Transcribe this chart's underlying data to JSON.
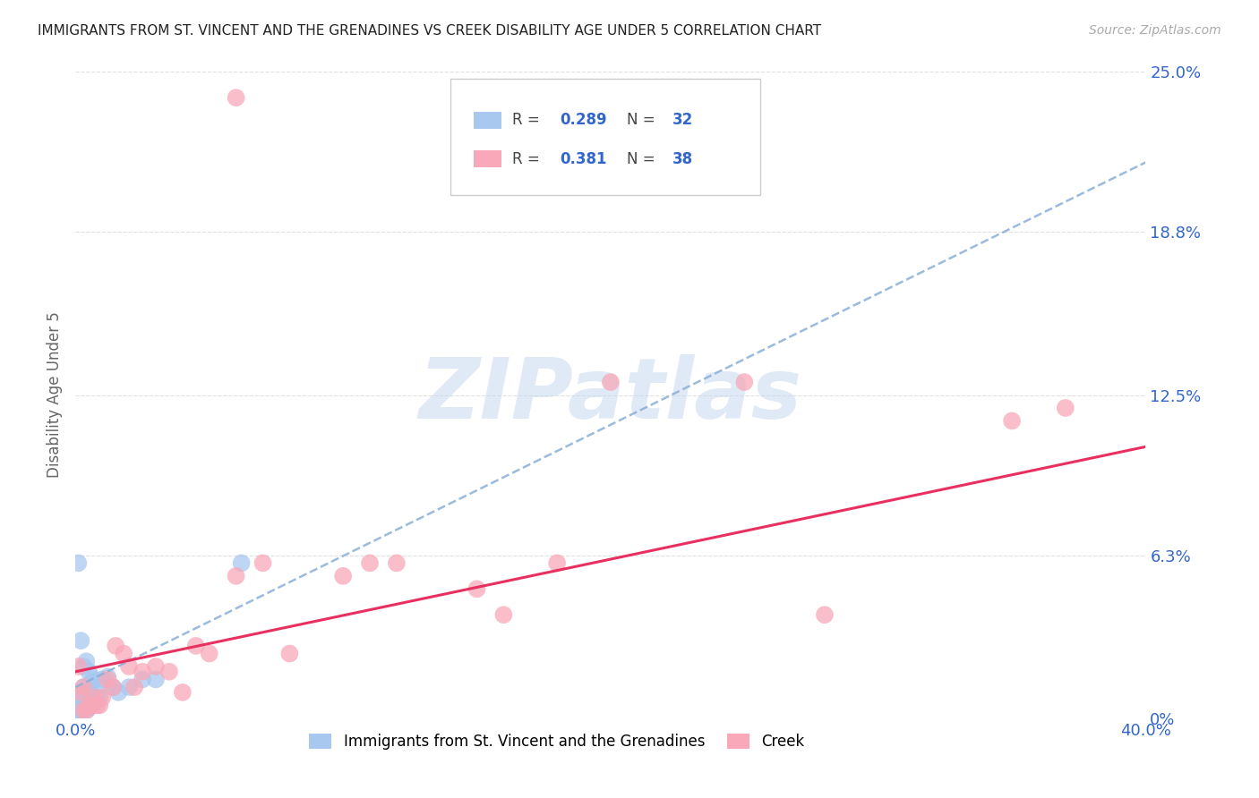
{
  "title": "IMMIGRANTS FROM ST. VINCENT AND THE GRENADINES VS CREEK DISABILITY AGE UNDER 5 CORRELATION CHART",
  "source": "Source: ZipAtlas.com",
  "ylabel": "Disability Age Under 5",
  "xlim": [
    0.0,
    0.4
  ],
  "ylim": [
    0.0,
    0.25
  ],
  "xticks": [
    0.0,
    0.1,
    0.2,
    0.3,
    0.4
  ],
  "xtick_labels": [
    "0.0%",
    "",
    "",
    "",
    "40.0%"
  ],
  "yticks": [
    0.0,
    0.063,
    0.125,
    0.188,
    0.25
  ],
  "ytick_labels": [
    "0%",
    "6.3%",
    "12.5%",
    "18.8%",
    "25.0%"
  ],
  "blue_color": "#a8c8f0",
  "pink_color": "#f8a8b8",
  "blue_line_color": "#3060c0",
  "pink_line_color": "#e83060",
  "axis_label_color": "#3366cc",
  "watermark_color": "#c8d8f0",
  "watermark_text": "ZIPatlas",
  "blue_x": [
    0.001,
    0.001,
    0.001,
    0.001,
    0.001,
    0.002,
    0.002,
    0.002,
    0.003,
    0.003,
    0.003,
    0.004,
    0.004,
    0.004,
    0.005,
    0.005,
    0.005,
    0.006,
    0.006,
    0.007,
    0.007,
    0.008,
    0.009,
    0.01,
    0.012,
    0.014,
    0.016,
    0.02,
    0.025,
    0.03,
    0.062,
    0.001
  ],
  "blue_y": [
    0.002,
    0.003,
    0.004,
    0.005,
    0.008,
    0.003,
    0.01,
    0.03,
    0.004,
    0.012,
    0.02,
    0.003,
    0.01,
    0.022,
    0.004,
    0.012,
    0.018,
    0.005,
    0.014,
    0.006,
    0.015,
    0.01,
    0.008,
    0.015,
    0.016,
    0.012,
    0.01,
    0.012,
    0.015,
    0.015,
    0.06,
    0.06
  ],
  "pink_x": [
    0.001,
    0.002,
    0.003,
    0.003,
    0.004,
    0.005,
    0.006,
    0.007,
    0.008,
    0.009,
    0.01,
    0.012,
    0.014,
    0.015,
    0.018,
    0.02,
    0.022,
    0.025,
    0.03,
    0.035,
    0.04,
    0.045,
    0.05,
    0.06,
    0.07,
    0.08,
    0.1,
    0.11,
    0.12,
    0.15,
    0.16,
    0.18,
    0.2,
    0.25,
    0.28,
    0.35,
    0.37,
    0.06
  ],
  "pink_y": [
    0.02,
    0.01,
    0.003,
    0.012,
    0.003,
    0.005,
    0.005,
    0.008,
    0.005,
    0.005,
    0.008,
    0.015,
    0.012,
    0.028,
    0.025,
    0.02,
    0.012,
    0.018,
    0.02,
    0.018,
    0.01,
    0.028,
    0.025,
    0.055,
    0.06,
    0.025,
    0.055,
    0.06,
    0.06,
    0.05,
    0.04,
    0.06,
    0.13,
    0.13,
    0.04,
    0.115,
    0.12,
    0.24
  ],
  "blue_trend_x0": 0.0,
  "blue_trend_x1": 0.4,
  "blue_trend_y0": 0.012,
  "blue_trend_y1": 0.215,
  "pink_trend_x0": 0.0,
  "pink_trend_x1": 0.4,
  "pink_trend_y0": 0.018,
  "pink_trend_y1": 0.105,
  "grid_color": "#e0e0e0",
  "background_color": "#ffffff",
  "legend_r1": "0.289",
  "legend_n1": "32",
  "legend_r2": "0.381",
  "legend_n2": "38"
}
